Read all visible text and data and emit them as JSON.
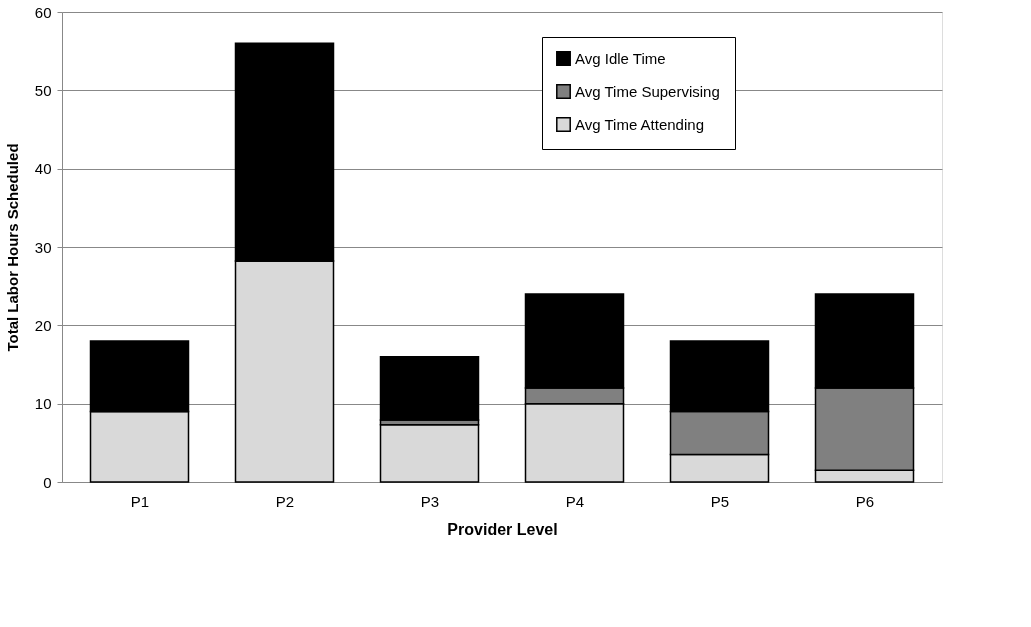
{
  "chart_data": {
    "type": "bar",
    "stacked": true,
    "xlabel": "Provider Level",
    "ylabel": "Total Labor Hours Scheduled",
    "categories": [
      "P1",
      "P2",
      "P3",
      "P4",
      "P5",
      "P6"
    ],
    "series": [
      {
        "name": "Avg Time Attending",
        "color": "#d9d9d9",
        "values": [
          9.0,
          28.2,
          7.3,
          10.0,
          3.5,
          1.5
        ]
      },
      {
        "name": "Avg Time Supervising",
        "color": "#808080",
        "values": [
          0,
          0,
          0.6,
          2.0,
          5.5,
          10.5
        ]
      },
      {
        "name": "Avg Idle Time",
        "color": "#000000",
        "values": [
          9.0,
          27.8,
          8.1,
          12.0,
          9.0,
          12.0
        ]
      }
    ],
    "ylim": [
      0,
      60
    ],
    "yticks": [
      0,
      10,
      20,
      30,
      40,
      50,
      60
    ],
    "grid": "y",
    "legend": "top right"
  }
}
